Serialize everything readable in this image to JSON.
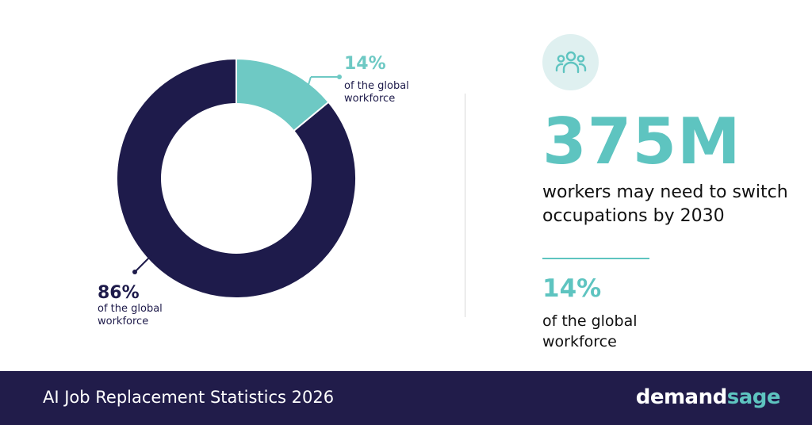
{
  "chart_data": {
    "type": "pie",
    "donut": true,
    "slices": [
      {
        "value": 14,
        "label": "14%",
        "sublabel": [
          "of the global",
          "workforce"
        ],
        "color": "#6ec9c4"
      },
      {
        "value": 86,
        "label": "86%",
        "sublabel": [
          "of the global",
          "workforce"
        ],
        "color": "#1e1b4b"
      }
    ]
  },
  "stats": {
    "icon": "people-group-icon",
    "headline_value": "375M",
    "headline_desc": "workers may need to switch occupations by 2030",
    "secondary_value": "14%",
    "secondary_desc": "of the global workforce"
  },
  "footer": {
    "title": "AI Job Replacement Statistics 2026",
    "brand_part1": "demand",
    "brand_part2": "sage"
  },
  "colors": {
    "navy": "#1e1b4b",
    "teal": "#5ec4c0",
    "footer_bg": "#211c4a"
  }
}
